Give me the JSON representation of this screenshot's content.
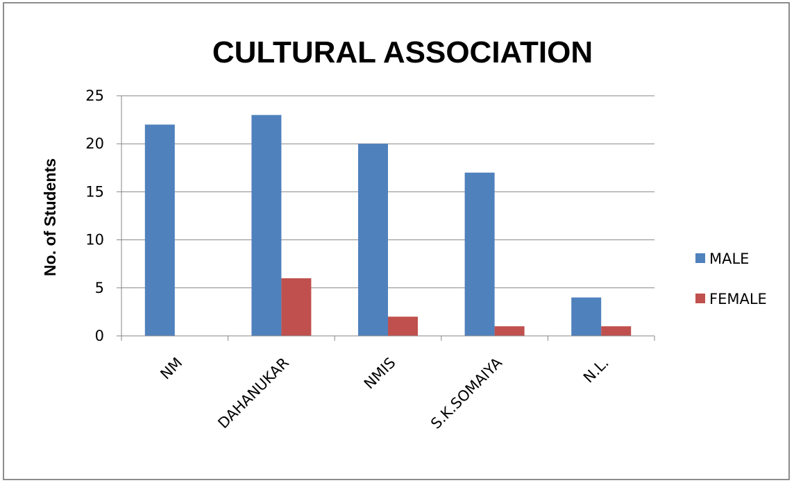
{
  "chart_data": {
    "type": "bar",
    "title": "CULTURAL ASSOCIATION",
    "xlabel": "",
    "ylabel": "No. of Students",
    "categories": [
      "NM",
      "DAHANUKAR",
      "NMIS",
      "S.K.SOMAIYA",
      "N.L."
    ],
    "series": [
      {
        "name": "MALE",
        "values": [
          22,
          23,
          20,
          17,
          4
        ],
        "color": "#4f81bd"
      },
      {
        "name": "FEMALE",
        "values": [
          0,
          6,
          2,
          1,
          1
        ],
        "color": "#c0504d"
      }
    ],
    "ylim": [
      0,
      25
    ],
    "yticks": [
      0,
      5,
      10,
      15,
      20,
      25
    ],
    "grid": true,
    "legend": "right"
  }
}
